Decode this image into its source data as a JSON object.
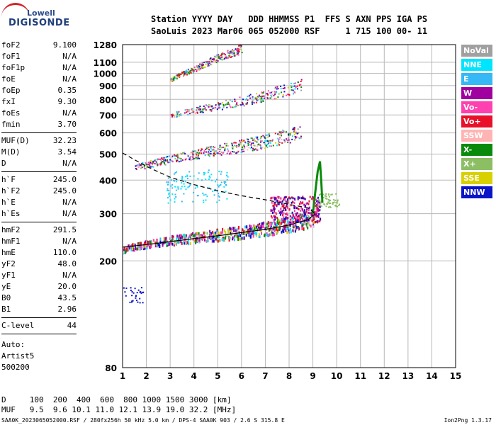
{
  "logo": {
    "line1": "Lowell",
    "line2": "DIGISONDE"
  },
  "header": {
    "row1": "Station YYYY DAY   DDD HHMMSS P1  FFS S AXN PPS IGA PS",
    "row2": "SaoLuis 2023 Mar06 065 052000 RSF     1 715 100 00- 11"
  },
  "params": [
    {
      "label": "foF2",
      "value": "9.100"
    },
    {
      "label": "foF1",
      "value": "N/A"
    },
    {
      "label": "foF1p",
      "value": "N/A"
    },
    {
      "label": "foE",
      "value": "N/A"
    },
    {
      "label": "foEp",
      "value": "0.35"
    },
    {
      "label": "fxI",
      "value": "9.30"
    },
    {
      "label": "foEs",
      "value": "N/A"
    },
    {
      "label": "fmin",
      "value": "3.70"
    },
    {
      "sep": true
    },
    {
      "label": "MUF(D)",
      "value": "32.23"
    },
    {
      "label": "M(D)",
      "value": "3.54"
    },
    {
      "label": "D",
      "value": "N/A"
    },
    {
      "sep": true
    },
    {
      "label": "h`F",
      "value": "245.0"
    },
    {
      "label": "h`F2",
      "value": "245.0"
    },
    {
      "label": "h`E",
      "value": "N/A"
    },
    {
      "label": "h`Es",
      "value": "N/A"
    },
    {
      "sep": true
    },
    {
      "label": "hmF2",
      "value": "291.5"
    },
    {
      "label": "hmF1",
      "value": "N/A"
    },
    {
      "label": "hmE",
      "value": "110.0"
    },
    {
      "label": "yF2",
      "value": "48.0"
    },
    {
      "label": "yF1",
      "value": "N/A"
    },
    {
      "label": "yE",
      "value": "20.0"
    },
    {
      "label": "B0",
      "value": "43.5"
    },
    {
      "label": "B1",
      "value": "2.96"
    },
    {
      "sep": true
    },
    {
      "label": "C-level",
      "value": "44"
    },
    {
      "sep": true
    }
  ],
  "auto": {
    "l1": "Auto:",
    "l2": "Artist5",
    "l3": "500200"
  },
  "legend": [
    {
      "label": "NoVal",
      "color": "#a0a0a0"
    },
    {
      "label": "NNE",
      "color": "#00e5ff"
    },
    {
      "label": "E",
      "color": "#35b8f5"
    },
    {
      "label": "W",
      "color": "#a000a0"
    },
    {
      "label": "Vo-",
      "color": "#ff40b0"
    },
    {
      "label": "Vo+",
      "color": "#e8102a"
    },
    {
      "label": "SSW",
      "color": "#ffb4b4"
    },
    {
      "label": "X-",
      "color": "#0a8a0a"
    },
    {
      "label": "X+",
      "color": "#8cbe64"
    },
    {
      "label": "SSE",
      "color": "#d8d000"
    },
    {
      "label": "NNW",
      "color": "#0a14c8"
    }
  ],
  "footer": {
    "row1": "D     100  200  400  600  800 1000 1500 3000 [km]",
    "row2": "MUF   9.5  9.6 10.1 11.0 12.1 13.9 19.0 32.2 [MHz]"
  },
  "filebar": "SAA0K_2023065052000.RSF / 280fx256h 50 kHz 5.0 km / DPS-4 SAA0K 903 / 2.6 S 315.8 E",
  "version": "Ion2Png 1.3.17",
  "chart_data": {
    "type": "scatter",
    "x_ticks": [
      "1",
      "2",
      "3",
      "4",
      "5",
      "6",
      "7",
      "8",
      "9",
      "10",
      "11",
      "12",
      "13",
      "14",
      "15"
    ],
    "y_ticks": [
      "80",
      "200",
      "300",
      "400",
      "500",
      "600",
      "700",
      "800",
      "900",
      "1000",
      "1100",
      "1280"
    ],
    "xlim": [
      1,
      15
    ],
    "ylim": [
      80,
      1280
    ],
    "y_scale": "log",
    "grid": true,
    "traces": [
      {
        "name": "O-trace",
        "points": [
          [
            1.0,
            222
          ],
          [
            1.5,
            228
          ],
          [
            2.0,
            233
          ],
          [
            3.0,
            240
          ],
          [
            4.0,
            246
          ],
          [
            5.0,
            252
          ],
          [
            6.0,
            258
          ],
          [
            7.0,
            266
          ],
          [
            8.0,
            276
          ],
          [
            8.5,
            282
          ],
          [
            9.0,
            290
          ],
          [
            9.1,
            300
          ],
          [
            9.2,
            330
          ]
        ]
      },
      {
        "name": "2nd-hop",
        "points": [
          [
            1.5,
            450
          ],
          [
            2.0,
            458
          ],
          [
            3.0,
            480
          ],
          [
            4.0,
            500
          ],
          [
            5.0,
            520
          ],
          [
            6.0,
            540
          ],
          [
            7.0,
            560
          ],
          [
            8.0,
            590
          ],
          [
            8.5,
            610
          ]
        ]
      },
      {
        "name": "3rd-hop",
        "points": [
          [
            3.0,
            700
          ],
          [
            4.0,
            730
          ],
          [
            5.0,
            760
          ],
          [
            6.0,
            790
          ],
          [
            7.0,
            830
          ],
          [
            8.0,
            880
          ],
          [
            8.5,
            910
          ]
        ]
      },
      {
        "name": "4th-hop",
        "points": [
          [
            3.0,
            950
          ],
          [
            3.5,
            1000
          ],
          [
            4.0,
            1040
          ],
          [
            5.0,
            1150
          ],
          [
            6.0,
            1240
          ]
        ]
      }
    ],
    "profile_dashed": [
      [
        1.0,
        505
      ],
      [
        2.0,
        450
      ],
      [
        3.0,
        410
      ],
      [
        4.0,
        385
      ],
      [
        5.0,
        365
      ],
      [
        6.0,
        350
      ],
      [
        7.0,
        338
      ],
      [
        8.0,
        325
      ],
      [
        8.8,
        315
      ],
      [
        9.1,
        300
      ]
    ],
    "profile_solid": [
      [
        1.0,
        225
      ],
      [
        2.0,
        230
      ],
      [
        3.0,
        236
      ],
      [
        4.0,
        242
      ],
      [
        5.0,
        248
      ],
      [
        6.0,
        255
      ],
      [
        7.0,
        262
      ],
      [
        8.0,
        272
      ],
      [
        8.8,
        285
      ],
      [
        9.1,
        300
      ]
    ],
    "x_trace": [
      [
        9.0,
        300
      ],
      [
        9.1,
        360
      ],
      [
        9.2,
        430
      ],
      [
        9.3,
        470
      ],
      [
        9.35,
        400
      ],
      [
        9.4,
        330
      ]
    ]
  }
}
